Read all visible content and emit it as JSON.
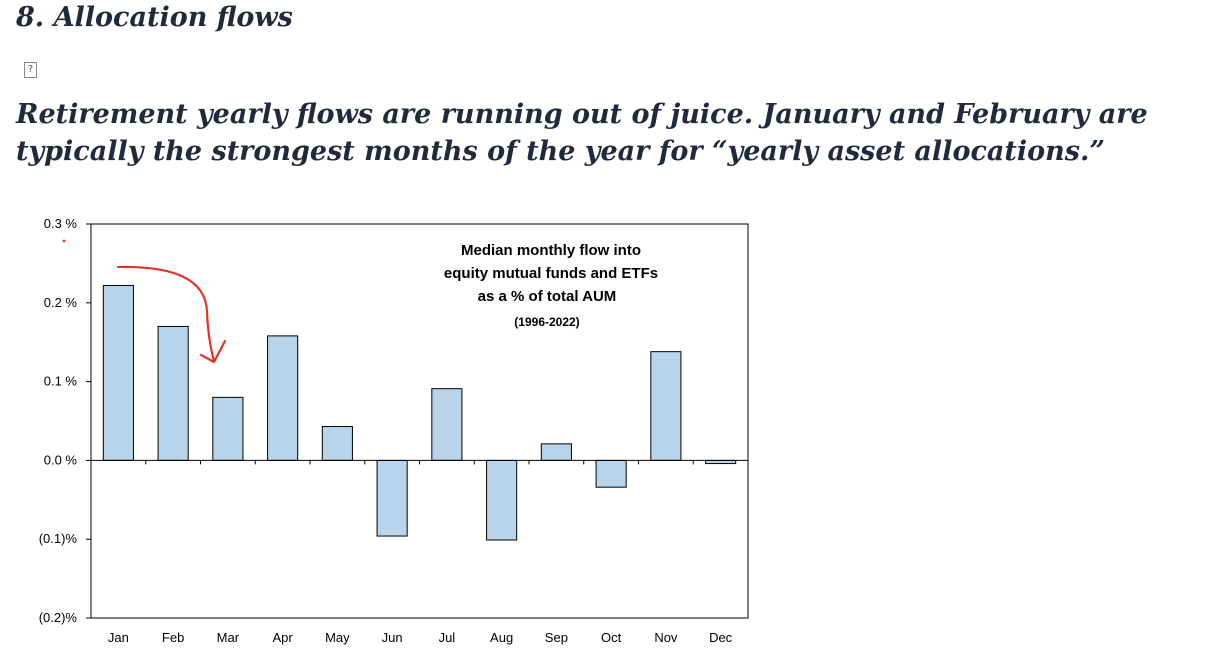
{
  "page": {
    "section_title": "8. Allocation flows",
    "broken_image_glyph": "?",
    "headline": "Retirement yearly flows are running out of juice. January and February are typically the strongest months of the year for “yearly asset allocations.”"
  },
  "chart_data": {
    "type": "bar",
    "title_lines": [
      "Median monthly flow into",
      "equity mutual funds and ETFs",
      "as a % of total AUM"
    ],
    "subtitle": "(1996-2022)",
    "categories": [
      "Jan",
      "Feb",
      "Mar",
      "Apr",
      "May",
      "Jun",
      "Jul",
      "Aug",
      "Sep",
      "Oct",
      "Nov",
      "Dec"
    ],
    "series": [
      {
        "values": [
          0.222,
          0.17,
          0.08,
          0.158,
          0.043,
          -0.096,
          0.091,
          -0.101,
          0.021,
          -0.034,
          0.138,
          -0.004
        ]
      }
    ],
    "ylim": [
      -0.2,
      0.3
    ],
    "yticks": [
      0.3,
      0.2,
      0.1,
      0.0,
      -0.1,
      -0.2
    ],
    "ytick_labels": [
      "0.3 %",
      "0.2 %",
      "0.1 %",
      "0.0 %",
      "(0.1)%",
      "(0.2)%"
    ],
    "bar_color": "#b7d4ea",
    "bar_stroke": "#000000",
    "annotation": {
      "type": "hand-drawn-arrow",
      "from": "Jan",
      "to": "Mar",
      "color": "#e0342b"
    },
    "grid": false,
    "legend": "none"
  }
}
